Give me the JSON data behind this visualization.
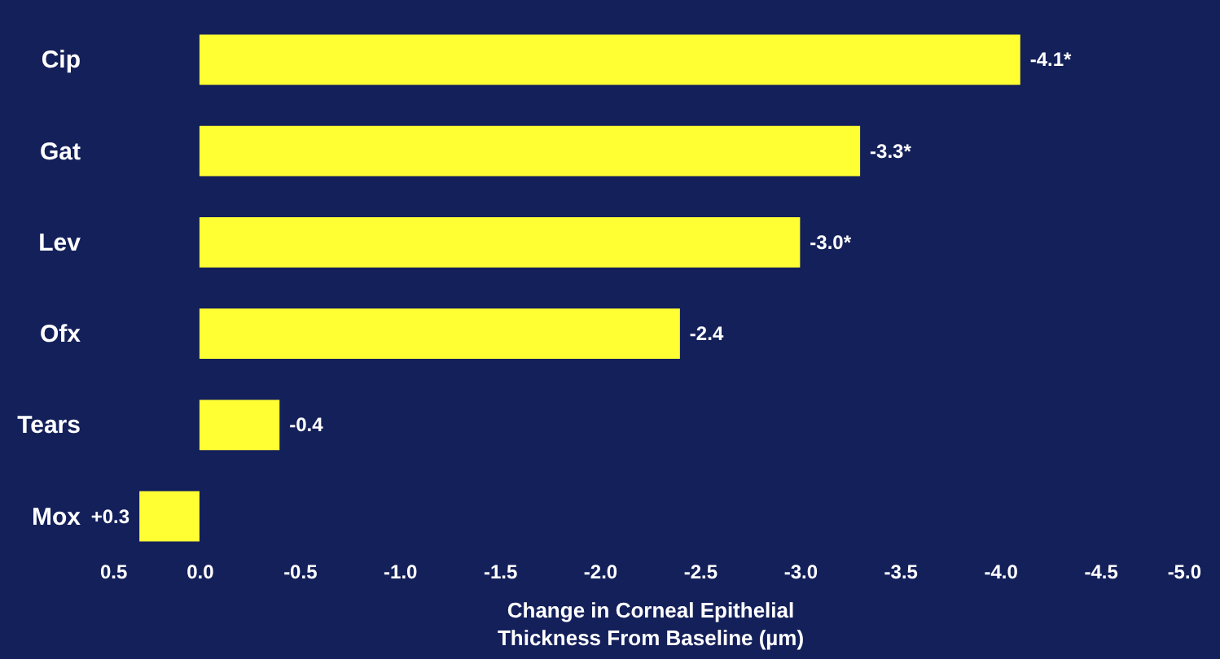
{
  "chart_data": {
    "type": "bar",
    "orientation": "horizontal",
    "categories": [
      "Cip",
      "Gat",
      "Lev",
      "Ofx",
      "Tears",
      "Mox"
    ],
    "values": [
      -4.1,
      -3.3,
      -3.0,
      -2.4,
      -0.4,
      0.3
    ],
    "value_labels": [
      "-4.1*",
      "-3.3*",
      "-3.0*",
      "-2.4",
      "-0.4",
      "+0.3"
    ],
    "color": "#ffff33",
    "xlim": [
      0.5,
      -5.0
    ],
    "xticks": [
      0.5,
      {
        "value": 0,
        "label": "0.0"
      },
      -0.5,
      {
        "value": -1,
        "label": "-1.0"
      },
      -1.5,
      {
        "value": -2,
        "label": "-2.0"
      },
      -2.5,
      {
        "value": -3,
        "label": "-3.0"
      },
      -3.5,
      {
        "value": -4,
        "label": "-4.0"
      },
      -4.5,
      {
        "value": -5,
        "label": "-5.0"
      }
    ],
    "xlabel": "Change in Corneal Epithelial\nThickness From Baseline (µm)",
    "grid": false
  }
}
